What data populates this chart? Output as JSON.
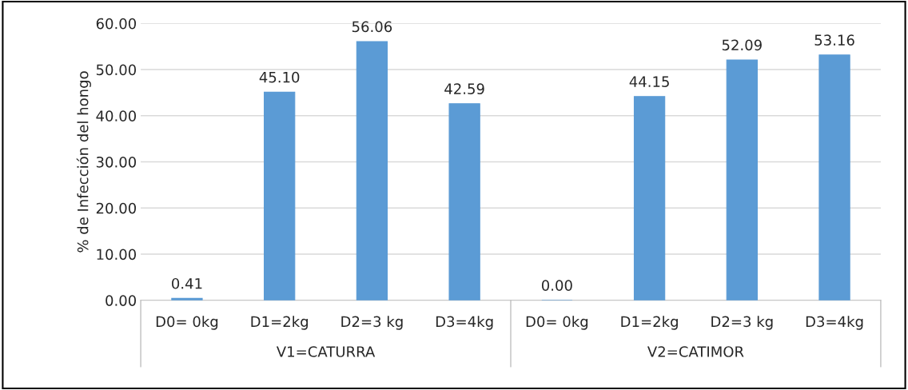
{
  "chart_data": {
    "type": "bar",
    "ylabel": "% de Infección del hongo",
    "categories": [
      "D0= 0kg",
      "D1=2kg",
      "D2=3 kg",
      "D3=4kg",
      "D0= 0kg",
      "D1=2kg",
      "D2=3 kg",
      "D3=4kg"
    ],
    "values": [
      0.41,
      45.1,
      56.06,
      42.59,
      0.0,
      44.15,
      52.09,
      53.16
    ],
    "value_labels": [
      "0.41",
      "45.10",
      "56.06",
      "42.59",
      "0.00",
      "44.15",
      "52.09",
      "53.16"
    ],
    "color": "#5b9bd5",
    "ylim": [
      0,
      60
    ],
    "yticks": [
      {
        "value": 0,
        "label": "0.00"
      },
      {
        "value": 10,
        "label": "10.00"
      },
      {
        "value": 20,
        "label": "20.00"
      },
      {
        "value": 30,
        "label": "30.00"
      },
      {
        "value": 40,
        "label": "40.00"
      },
      {
        "value": 50,
        "label": "50.00"
      },
      {
        "value": 60,
        "label": "60.00"
      }
    ],
    "grid": "y",
    "annotations": [
      "V1=CATURRA",
      "V2=CATIMOR"
    ]
  }
}
